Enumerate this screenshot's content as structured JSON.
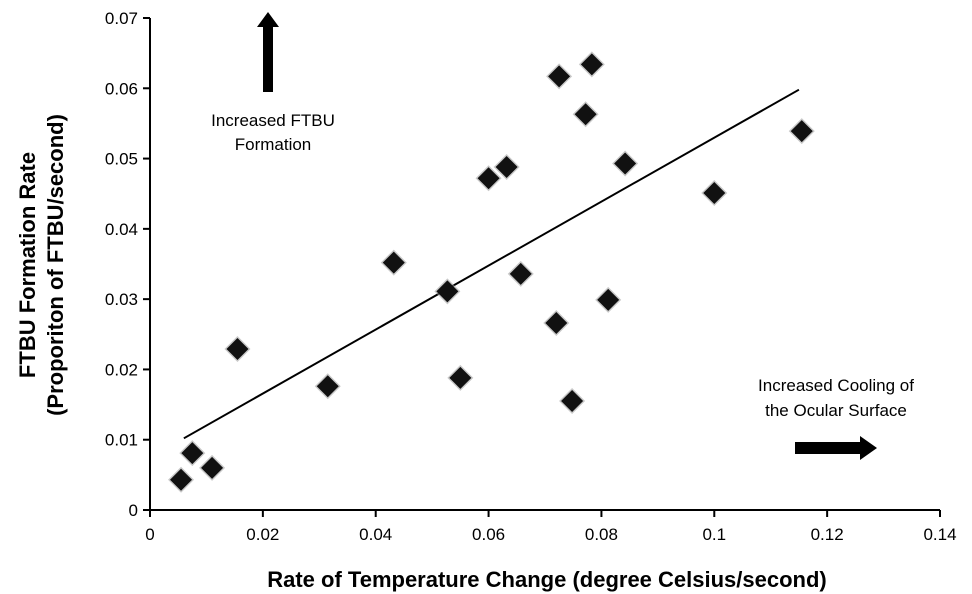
{
  "chart_data": {
    "type": "scatter",
    "title": "",
    "xlabel": "Rate of Temperature Change (degree Celsius/second)",
    "ylabel_lines": [
      "FTBU Formation Rate",
      "(Proporiton of FTBU/second)"
    ],
    "xlim": [
      0,
      0.14
    ],
    "ylim": [
      0,
      0.07
    ],
    "x_ticks": [
      0,
      0.02,
      0.04,
      0.06,
      0.08,
      0.1,
      0.12,
      0.14
    ],
    "x_tick_labels": [
      "0",
      "0.02",
      "0.04",
      "0.06",
      "0.08",
      "0.1",
      "0.12",
      "0.14"
    ],
    "y_ticks": [
      0,
      0.01,
      0.02,
      0.03,
      0.04,
      0.05,
      0.06,
      0.07
    ],
    "y_tick_labels": [
      "0",
      "0.01",
      "0.02",
      "0.03",
      "0.04",
      "0.05",
      "0.06",
      "0.07"
    ],
    "grid": false,
    "legend": "none",
    "marker": "diamond",
    "marker_color": "#111111",
    "points": [
      {
        "x": 0.0055,
        "y": 0.0043
      },
      {
        "x": 0.0075,
        "y": 0.0081
      },
      {
        "x": 0.011,
        "y": 0.006
      },
      {
        "x": 0.0155,
        "y": 0.0229
      },
      {
        "x": 0.0315,
        "y": 0.0176
      },
      {
        "x": 0.0432,
        "y": 0.0352
      },
      {
        "x": 0.0527,
        "y": 0.0311
      },
      {
        "x": 0.055,
        "y": 0.0188
      },
      {
        "x": 0.06,
        "y": 0.0472
      },
      {
        "x": 0.0632,
        "y": 0.0488
      },
      {
        "x": 0.0657,
        "y": 0.0336
      },
      {
        "x": 0.072,
        "y": 0.0266
      },
      {
        "x": 0.0725,
        "y": 0.0617
      },
      {
        "x": 0.0748,
        "y": 0.0155
      },
      {
        "x": 0.0772,
        "y": 0.0563
      },
      {
        "x": 0.0783,
        "y": 0.0634
      },
      {
        "x": 0.0812,
        "y": 0.0299
      },
      {
        "x": 0.0842,
        "y": 0.0493
      },
      {
        "x": 0.1,
        "y": 0.0451
      },
      {
        "x": 0.1155,
        "y": 0.0539
      }
    ],
    "trendline": {
      "x": [
        0.006,
        0.115
      ],
      "y": [
        0.0102,
        0.0598
      ]
    },
    "annotations": [
      {
        "lines": [
          "Increased FTBU",
          "Formation"
        ],
        "arrow": "up"
      },
      {
        "lines": [
          "Increased Cooling of",
          "the Ocular Surface"
        ],
        "arrow": "right"
      }
    ]
  }
}
